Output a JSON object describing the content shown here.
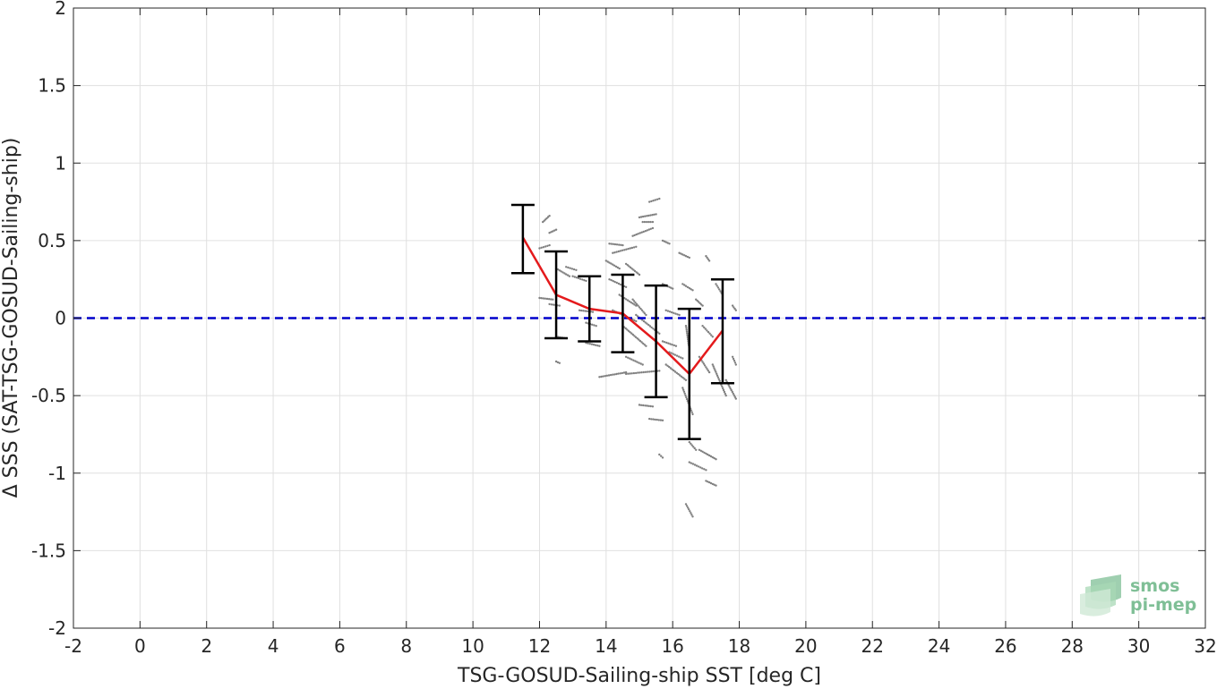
{
  "chart_data": {
    "type": "scatter",
    "title": "",
    "xlabel": "TSG-GOSUD-Sailing-ship SST [deg C]",
    "ylabel": "Δ SSS (SAT-TSG-GOSUD-Sailing-ship)",
    "xlim": [
      -2,
      32
    ],
    "ylim": [
      -2,
      2
    ],
    "x_ticks": [
      -2,
      0,
      2,
      4,
      6,
      8,
      10,
      12,
      14,
      16,
      18,
      20,
      22,
      24,
      26,
      28,
      30,
      32
    ],
    "x_tick_labels": [
      "-2",
      "0",
      "2",
      "4",
      "6",
      "8",
      "10",
      "12",
      "14",
      "16",
      "18",
      "20",
      "22",
      "24",
      "26",
      "28",
      "30",
      "32"
    ],
    "y_ticks": [
      -2,
      -1.5,
      -1,
      -0.5,
      0,
      0.5,
      1,
      1.5,
      2
    ],
    "y_tick_labels": [
      "-2",
      "-1.5",
      "-1",
      "-0.5",
      "0",
      "0.5",
      "1",
      "1.5",
      "2"
    ],
    "grid": true,
    "reference_line": {
      "y": 0,
      "color": "#0000cc",
      "style": "dashed"
    },
    "mean_series": {
      "color": "#e41a1c",
      "x": [
        11.5,
        12.5,
        13.5,
        14.5,
        15.5,
        16.5,
        17.5
      ],
      "y": [
        0.52,
        0.15,
        0.06,
        0.03,
        -0.15,
        -0.36,
        -0.08
      ]
    },
    "error_bars": {
      "color": "#000000",
      "x": [
        11.5,
        12.5,
        13.5,
        14.5,
        15.5,
        16.5,
        17.5
      ],
      "upper": [
        0.73,
        0.43,
        0.27,
        0.28,
        0.21,
        0.06,
        0.25
      ],
      "lower": [
        0.29,
        -0.13,
        -0.15,
        -0.22,
        -0.51,
        -0.78,
        -0.42
      ]
    },
    "scatter_color": "#808080",
    "scatter_segments": [
      {
        "x0": 12.1,
        "y0": 0.62,
        "x1": 12.3,
        "y1": 0.66
      },
      {
        "x0": 12.3,
        "y0": 0.55,
        "x1": 12.5,
        "y1": 0.57
      },
      {
        "x0": 12.0,
        "y0": 0.45,
        "x1": 12.3,
        "y1": 0.47
      },
      {
        "x0": 12.0,
        "y0": 0.13,
        "x1": 12.4,
        "y1": 0.12
      },
      {
        "x0": 12.3,
        "y0": 0.09,
        "x1": 12.6,
        "y1": 0.08
      },
      {
        "x0": 12.5,
        "y0": 0.32,
        "x1": 12.9,
        "y1": 0.27
      },
      {
        "x0": 12.8,
        "y0": 0.33,
        "x1": 13.1,
        "y1": 0.31
      },
      {
        "x0": 12.5,
        "y0": -0.12,
        "x1": 12.8,
        "y1": -0.13
      },
      {
        "x0": 12.5,
        "y0": -0.28,
        "x1": 12.6,
        "y1": -0.29
      },
      {
        "x0": 13.0,
        "y0": 0.27,
        "x1": 13.4,
        "y1": 0.24
      },
      {
        "x0": 13.2,
        "y0": 0.05,
        "x1": 13.6,
        "y1": 0.04
      },
      {
        "x0": 13.4,
        "y0": -0.03,
        "x1": 13.7,
        "y1": -0.05
      },
      {
        "x0": 13.4,
        "y0": -0.16,
        "x1": 13.8,
        "y1": -0.18
      },
      {
        "x0": 14.1,
        "y0": 0.48,
        "x1": 14.5,
        "y1": 0.47
      },
      {
        "x0": 14.2,
        "y0": 0.42,
        "x1": 14.9,
        "y1": 0.46
      },
      {
        "x0": 14.8,
        "y0": 0.53,
        "x1": 15.4,
        "y1": 0.58
      },
      {
        "x0": 15.3,
        "y0": 0.75,
        "x1": 15.6,
        "y1": 0.77
      },
      {
        "x0": 15.0,
        "y0": 0.65,
        "x1": 15.5,
        "y1": 0.67
      },
      {
        "x0": 15.1,
        "y0": 0.62,
        "x1": 15.4,
        "y1": 0.62
      },
      {
        "x0": 15.7,
        "y0": 0.5,
        "x1": 15.9,
        "y1": 0.48
      },
      {
        "x0": 14.0,
        "y0": 0.37,
        "x1": 14.4,
        "y1": 0.32
      },
      {
        "x0": 14.1,
        "y0": 0.25,
        "x1": 14.6,
        "y1": 0.2
      },
      {
        "x0": 14.4,
        "y0": 0.15,
        "x1": 14.9,
        "y1": 0.08
      },
      {
        "x0": 14.6,
        "y0": 0.35,
        "x1": 15.0,
        "y1": 0.28
      },
      {
        "x0": 14.8,
        "y0": 0.12,
        "x1": 15.2,
        "y1": 0.02
      },
      {
        "x0": 14.9,
        "y0": 0.02,
        "x1": 15.6,
        "y1": -0.1
      },
      {
        "x0": 14.2,
        "y0": 0.05,
        "x1": 14.9,
        "y1": -0.02
      },
      {
        "x0": 14.5,
        "y0": -0.05,
        "x1": 15.2,
        "y1": -0.18
      },
      {
        "x0": 14.6,
        "y0": -0.25,
        "x1": 15.1,
        "y1": -0.3
      },
      {
        "x0": 13.8,
        "y0": -0.38,
        "x1": 14.6,
        "y1": -0.35
      },
      {
        "x0": 14.6,
        "y0": -0.36,
        "x1": 15.6,
        "y1": -0.34
      },
      {
        "x0": 15.0,
        "y0": -0.56,
        "x1": 15.4,
        "y1": -0.57
      },
      {
        "x0": 15.3,
        "y0": -0.65,
        "x1": 15.7,
        "y1": -0.66
      },
      {
        "x0": 15.6,
        "y0": -0.88,
        "x1": 15.7,
        "y1": -0.9
      },
      {
        "x0": 15.7,
        "y0": 0.22,
        "x1": 16.0,
        "y1": 0.19
      },
      {
        "x0": 15.8,
        "y0": 0.05,
        "x1": 16.2,
        "y1": 0.02
      },
      {
        "x0": 15.7,
        "y0": -0.15,
        "x1": 16.1,
        "y1": -0.18
      },
      {
        "x0": 15.9,
        "y0": -0.22,
        "x1": 16.3,
        "y1": -0.26
      },
      {
        "x0": 15.8,
        "y0": -0.3,
        "x1": 16.4,
        "y1": -0.4
      },
      {
        "x0": 16.2,
        "y0": 0.42,
        "x1": 16.5,
        "y1": 0.39
      },
      {
        "x0": 16.3,
        "y0": 0.22,
        "x1": 16.6,
        "y1": 0.18
      },
      {
        "x0": 16.4,
        "y0": -0.05,
        "x1": 16.5,
        "y1": -0.2
      },
      {
        "x0": 16.3,
        "y0": -0.45,
        "x1": 16.6,
        "y1": -0.62
      },
      {
        "x0": 16.5,
        "y0": -0.8,
        "x1": 16.7,
        "y1": -0.85
      },
      {
        "x0": 16.5,
        "y0": -0.93,
        "x1": 17.0,
        "y1": -0.98
      },
      {
        "x0": 17.0,
        "y0": -1.05,
        "x1": 17.3,
        "y1": -1.08
      },
      {
        "x0": 16.8,
        "y0": -0.85,
        "x1": 17.3,
        "y1": -0.91
      },
      {
        "x0": 16.4,
        "y0": -1.2,
        "x1": 16.6,
        "y1": -1.28
      },
      {
        "x0": 16.7,
        "y0": 0.12,
        "x1": 16.9,
        "y1": 0.08
      },
      {
        "x0": 16.9,
        "y0": -0.05,
        "x1": 17.2,
        "y1": -0.12
      },
      {
        "x0": 16.8,
        "y0": -0.25,
        "x1": 17.1,
        "y1": -0.35
      },
      {
        "x0": 17.2,
        "y0": -0.3,
        "x1": 17.6,
        "y1": -0.5
      },
      {
        "x0": 17.3,
        "y0": 0.22,
        "x1": 17.5,
        "y1": 0.15
      },
      {
        "x0": 17.0,
        "y0": 0.4,
        "x1": 17.1,
        "y1": 0.37
      },
      {
        "x0": 17.8,
        "y0": 0.08,
        "x1": 17.9,
        "y1": 0.05
      },
      {
        "x0": 17.6,
        "y0": -0.4,
        "x1": 17.9,
        "y1": -0.52
      },
      {
        "x0": 17.8,
        "y0": -0.25,
        "x1": 17.9,
        "y1": -0.3
      }
    ]
  },
  "logo": {
    "line1": "smos",
    "line2": "pi-mep"
  }
}
